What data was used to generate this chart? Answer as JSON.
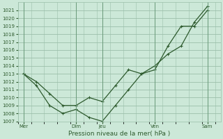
{
  "xlabel": "Pression niveau de la mer( hPa )",
  "bg_color": "#cce8d8",
  "grid_color": "#9bbfaa",
  "line_color": "#2d5a2d",
  "ylim": [
    1007,
    1022
  ],
  "yticks": [
    1007,
    1008,
    1009,
    1010,
    1011,
    1012,
    1013,
    1014,
    1015,
    1016,
    1017,
    1018,
    1019,
    1020,
    1021
  ],
  "xtick_labels": [
    "Mer",
    "Dim",
    "Jeu",
    "Ven",
    "Sam"
  ],
  "xtick_positions": [
    0,
    48,
    72,
    120,
    168
  ],
  "xlim": [
    -5,
    180
  ],
  "line1_x": [
    0,
    12,
    24,
    36,
    48,
    60,
    72,
    84,
    96,
    108,
    120,
    132,
    144,
    156,
    168
  ],
  "line1_y": [
    1013.0,
    1012.0,
    1010.5,
    1009.0,
    1009.0,
    1010.0,
    1009.5,
    1011.5,
    1013.5,
    1013.0,
    1013.5,
    1016.5,
    1019.0,
    1019.0,
    1021.0
  ],
  "line2_x": [
    0,
    12,
    24,
    36,
    48,
    60,
    72,
    84,
    96,
    108,
    120,
    132,
    144,
    156,
    168
  ],
  "line2_y": [
    1013.0,
    1011.5,
    1009.0,
    1008.0,
    1008.5,
    1007.5,
    1007.0,
    1009.0,
    1011.0,
    1013.0,
    1014.0,
    1015.5,
    1016.5,
    1019.5,
    1021.5
  ],
  "vlines": [
    0,
    48,
    72,
    120,
    168
  ],
  "marker_size": 2.5,
  "line_width": 0.9,
  "tick_labelsize": 5,
  "xlabel_fontsize": 6.5
}
